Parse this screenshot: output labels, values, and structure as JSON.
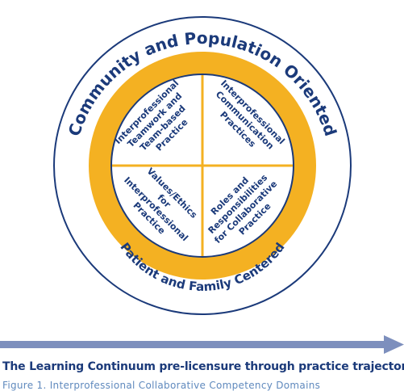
{
  "colors": {
    "navy": "#1b3a7a",
    "gold": "#f4b122",
    "ring_fill": "#ffffff",
    "arrow": "#7d8fbd"
  },
  "diagram": {
    "outer_label": "Community and Population Oriented",
    "inner_label": "Patient and Family Centered",
    "quadrants": {
      "top_left": [
        "Interprofessional",
        "Teamwork and",
        "Team-based",
        "Practice"
      ],
      "top_right": [
        "Interprofessional",
        "Communication",
        "Practices"
      ],
      "bottom_left": [
        "Values/Ethics",
        "for",
        "Interprofessional",
        "Practice"
      ],
      "bottom_right": [
        "Roles and",
        "Responsibilities",
        "for Collaborative",
        "Practice"
      ]
    }
  },
  "arrow": {
    "direction": "right"
  },
  "caption": "The Learning Continuum pre-licensure through practice trajectory",
  "subcaption": "Figure 1. Interprofessional Collaborative Competency Domains"
}
